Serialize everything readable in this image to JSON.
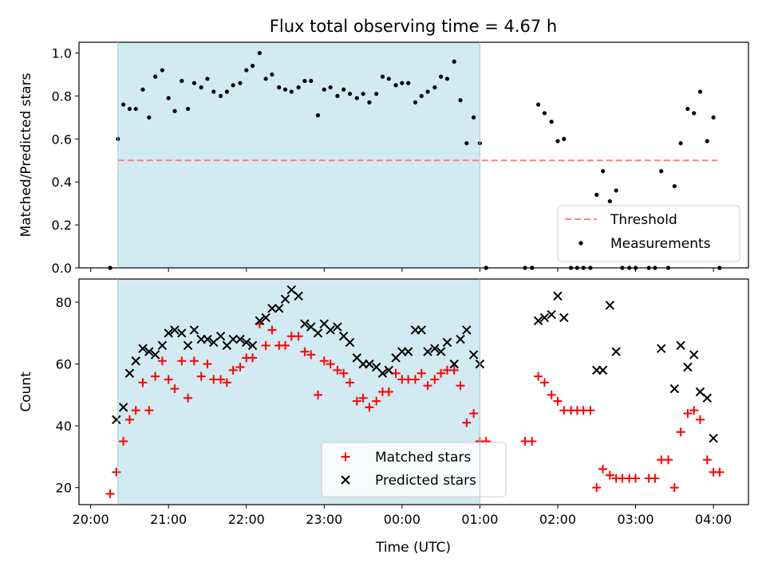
{
  "figure": {
    "title": "Flux total observing time = 4.67 h",
    "xlabel": "Time (UTC)",
    "x_tick_labels": [
      "20:00",
      "21:00",
      "22:00",
      "23:00",
      "00:00",
      "01:00",
      "02:00",
      "03:00",
      "04:00"
    ],
    "x_tick_hours": [
      0,
      1,
      2,
      3,
      4,
      5,
      6,
      7,
      8
    ],
    "x_axis_origin": "20:00",
    "xlim_hours": [
      -0.15,
      8.45
    ],
    "shaded_interval_hours": [
      0.35,
      5.0
    ],
    "shade_color": "#add8e6"
  },
  "chart_data": [
    {
      "type": "scatter",
      "ylabel": "Matched/Predicted stars",
      "ylim": [
        0,
        1.05
      ],
      "y_ticks": [
        0.0,
        0.2,
        0.4,
        0.6,
        0.8,
        1.0
      ],
      "y_tick_labels": [
        "0.0",
        "0.2",
        "0.4",
        "0.6",
        "0.8",
        "1.0"
      ],
      "legend_position": "lower-right",
      "threshold": {
        "name": "Threshold",
        "value": 0.5,
        "x_range": [
          0.35,
          8.05
        ],
        "color": "#ff7f7f",
        "style": "dashed"
      },
      "series": [
        {
          "name": "Measurements",
          "color": "#000000",
          "marker": "dot",
          "points": [
            [
              0.25,
              0.0
            ],
            [
              0.35,
              0.6
            ],
            [
              0.42,
              0.76
            ],
            [
              0.5,
              0.74
            ],
            [
              0.58,
              0.74
            ],
            [
              0.67,
              0.83
            ],
            [
              0.75,
              0.7
            ],
            [
              0.83,
              0.89
            ],
            [
              0.92,
              0.92
            ],
            [
              1.0,
              0.79
            ],
            [
              1.08,
              0.73
            ],
            [
              1.17,
              0.87
            ],
            [
              1.25,
              0.74
            ],
            [
              1.33,
              0.86
            ],
            [
              1.42,
              0.84
            ],
            [
              1.5,
              0.88
            ],
            [
              1.58,
              0.82
            ],
            [
              1.67,
              0.8
            ],
            [
              1.75,
              0.82
            ],
            [
              1.83,
              0.85
            ],
            [
              1.92,
              0.86
            ],
            [
              2.0,
              0.92
            ],
            [
              2.08,
              0.94
            ],
            [
              2.17,
              1.0
            ],
            [
              2.25,
              0.88
            ],
            [
              2.33,
              0.9
            ],
            [
              2.42,
              0.84
            ],
            [
              2.5,
              0.83
            ],
            [
              2.58,
              0.82
            ],
            [
              2.67,
              0.84
            ],
            [
              2.75,
              0.87
            ],
            [
              2.83,
              0.87
            ],
            [
              2.92,
              0.71
            ],
            [
              3.0,
              0.83
            ],
            [
              3.08,
              0.84
            ],
            [
              3.17,
              0.8
            ],
            [
              3.25,
              0.83
            ],
            [
              3.33,
              0.81
            ],
            [
              3.42,
              0.79
            ],
            [
              3.5,
              0.81
            ],
            [
              3.58,
              0.77
            ],
            [
              3.67,
              0.81
            ],
            [
              3.75,
              0.89
            ],
            [
              3.83,
              0.88
            ],
            [
              3.92,
              0.85
            ],
            [
              4.0,
              0.86
            ],
            [
              4.08,
              0.86
            ],
            [
              4.17,
              0.77
            ],
            [
              4.25,
              0.8
            ],
            [
              4.33,
              0.82
            ],
            [
              4.42,
              0.84
            ],
            [
              4.5,
              0.89
            ],
            [
              4.58,
              0.88
            ],
            [
              4.67,
              0.96
            ],
            [
              4.75,
              0.78
            ],
            [
              4.83,
              0.58
            ],
            [
              4.92,
              0.7
            ],
            [
              5.0,
              0.58
            ],
            [
              5.08,
              0.0
            ],
            [
              5.58,
              0.0
            ],
            [
              5.67,
              0.0
            ],
            [
              5.75,
              0.76
            ],
            [
              5.83,
              0.72
            ],
            [
              5.92,
              0.68
            ],
            [
              6.0,
              0.59
            ],
            [
              6.08,
              0.6
            ],
            [
              6.17,
              0.0
            ],
            [
              6.25,
              0.0
            ],
            [
              6.33,
              0.0
            ],
            [
              6.42,
              0.0
            ],
            [
              6.5,
              0.34
            ],
            [
              6.58,
              0.45
            ],
            [
              6.67,
              0.31
            ],
            [
              6.75,
              0.36
            ],
            [
              6.83,
              0.0
            ],
            [
              6.92,
              0.0
            ],
            [
              7.0,
              0.0
            ],
            [
              7.17,
              0.0
            ],
            [
              7.25,
              0.0
            ],
            [
              7.33,
              0.45
            ],
            [
              7.42,
              0.0
            ],
            [
              7.5,
              0.38
            ],
            [
              7.58,
              0.58
            ],
            [
              7.67,
              0.74
            ],
            [
              7.75,
              0.72
            ],
            [
              7.83,
              0.82
            ],
            [
              7.92,
              0.59
            ],
            [
              8.0,
              0.7
            ],
            [
              8.08,
              0.0
            ]
          ]
        }
      ]
    },
    {
      "type": "scatter",
      "ylabel": "Count",
      "ylim": [
        14.5,
        87.5
      ],
      "y_ticks": [
        20,
        40,
        60,
        80
      ],
      "y_tick_labels": [
        "20",
        "40",
        "60",
        "80"
      ],
      "legend_position": "lower-center",
      "series": [
        {
          "name": "Matched stars",
          "color": "#ff0000",
          "marker": "plus",
          "points": [
            [
              0.25,
              18
            ],
            [
              0.33,
              25
            ],
            [
              0.42,
              35
            ],
            [
              0.5,
              42
            ],
            [
              0.58,
              45
            ],
            [
              0.67,
              54
            ],
            [
              0.75,
              45
            ],
            [
              0.83,
              56
            ],
            [
              0.92,
              61
            ],
            [
              1.0,
              55
            ],
            [
              1.08,
              52
            ],
            [
              1.17,
              61
            ],
            [
              1.25,
              49
            ],
            [
              1.33,
              61
            ],
            [
              1.42,
              56
            ],
            [
              1.5,
              60
            ],
            [
              1.58,
              55
            ],
            [
              1.67,
              55
            ],
            [
              1.75,
              54
            ],
            [
              1.83,
              58
            ],
            [
              1.92,
              59
            ],
            [
              2.0,
              62
            ],
            [
              2.08,
              62
            ],
            [
              2.17,
              73
            ],
            [
              2.25,
              66
            ],
            [
              2.33,
              71
            ],
            [
              2.42,
              66
            ],
            [
              2.5,
              66
            ],
            [
              2.58,
              69
            ],
            [
              2.67,
              69
            ],
            [
              2.75,
              64
            ],
            [
              2.83,
              63
            ],
            [
              2.92,
              50
            ],
            [
              3.0,
              61
            ],
            [
              3.08,
              60
            ],
            [
              3.17,
              58
            ],
            [
              3.25,
              57
            ],
            [
              3.33,
              54
            ],
            [
              3.42,
              48
            ],
            [
              3.5,
              49
            ],
            [
              3.58,
              46
            ],
            [
              3.67,
              48
            ],
            [
              3.75,
              51
            ],
            [
              3.83,
              51
            ],
            [
              3.92,
              57
            ],
            [
              4.0,
              55
            ],
            [
              4.08,
              55
            ],
            [
              4.17,
              55
            ],
            [
              4.25,
              57
            ],
            [
              4.33,
              53
            ],
            [
              4.42,
              55
            ],
            [
              4.5,
              57
            ],
            [
              4.58,
              58
            ],
            [
              4.67,
              58
            ],
            [
              4.75,
              53
            ],
            [
              4.83,
              41
            ],
            [
              4.92,
              44
            ],
            [
              5.0,
              35
            ],
            [
              5.08,
              35
            ],
            [
              5.58,
              35
            ],
            [
              5.67,
              35
            ],
            [
              5.75,
              56
            ],
            [
              5.83,
              54
            ],
            [
              5.92,
              50
            ],
            [
              6.0,
              48
            ],
            [
              6.08,
              45
            ],
            [
              6.17,
              45
            ],
            [
              6.25,
              45
            ],
            [
              6.33,
              45
            ],
            [
              6.42,
              45
            ],
            [
              6.5,
              20
            ],
            [
              6.58,
              26
            ],
            [
              6.67,
              24
            ],
            [
              6.75,
              23
            ],
            [
              6.83,
              23
            ],
            [
              6.92,
              23
            ],
            [
              7.0,
              23
            ],
            [
              7.17,
              23
            ],
            [
              7.25,
              23
            ],
            [
              7.33,
              29
            ],
            [
              7.42,
              29
            ],
            [
              7.5,
              20
            ],
            [
              7.58,
              38
            ],
            [
              7.67,
              44
            ],
            [
              7.75,
              45
            ],
            [
              7.83,
              42
            ],
            [
              7.92,
              29
            ],
            [
              8.0,
              25
            ],
            [
              8.08,
              25
            ]
          ]
        },
        {
          "name": "Predicted stars",
          "color": "#000000",
          "marker": "x",
          "points": [
            [
              0.33,
              42
            ],
            [
              0.42,
              46
            ],
            [
              0.5,
              57
            ],
            [
              0.58,
              61
            ],
            [
              0.67,
              65
            ],
            [
              0.75,
              64
            ],
            [
              0.83,
              63
            ],
            [
              0.92,
              66
            ],
            [
              1.0,
              70
            ],
            [
              1.08,
              71
            ],
            [
              1.17,
              70
            ],
            [
              1.25,
              66
            ],
            [
              1.33,
              71
            ],
            [
              1.42,
              68
            ],
            [
              1.5,
              68
            ],
            [
              1.58,
              67
            ],
            [
              1.67,
              69
            ],
            [
              1.75,
              66
            ],
            [
              1.83,
              68
            ],
            [
              1.92,
              68
            ],
            [
              2.0,
              67
            ],
            [
              2.08,
              66
            ],
            [
              2.17,
              74
            ],
            [
              2.25,
              75
            ],
            [
              2.33,
              78
            ],
            [
              2.42,
              78
            ],
            [
              2.5,
              81
            ],
            [
              2.58,
              84
            ],
            [
              2.67,
              82
            ],
            [
              2.75,
              73
            ],
            [
              2.83,
              72
            ],
            [
              2.92,
              70
            ],
            [
              3.0,
              73
            ],
            [
              3.08,
              71
            ],
            [
              3.17,
              72
            ],
            [
              3.25,
              69
            ],
            [
              3.33,
              67
            ],
            [
              3.42,
              62
            ],
            [
              3.5,
              60
            ],
            [
              3.58,
              60
            ],
            [
              3.67,
              59
            ],
            [
              3.75,
              57
            ],
            [
              3.83,
              58
            ],
            [
              3.92,
              62
            ],
            [
              4.0,
              64
            ],
            [
              4.08,
              64
            ],
            [
              4.17,
              71
            ],
            [
              4.25,
              71
            ],
            [
              4.33,
              64
            ],
            [
              4.42,
              65
            ],
            [
              4.5,
              64
            ],
            [
              4.58,
              67
            ],
            [
              4.67,
              60
            ],
            [
              4.75,
              68
            ],
            [
              4.83,
              71
            ],
            [
              4.92,
              63
            ],
            [
              5.0,
              60
            ],
            [
              5.75,
              74
            ],
            [
              5.83,
              75
            ],
            [
              5.92,
              76
            ],
            [
              6.0,
              82
            ],
            [
              6.08,
              75
            ],
            [
              6.5,
              58
            ],
            [
              6.58,
              58
            ],
            [
              6.67,
              79
            ],
            [
              6.75,
              64
            ],
            [
              7.33,
              65
            ],
            [
              7.5,
              52
            ],
            [
              7.58,
              66
            ],
            [
              7.67,
              59
            ],
            [
              7.75,
              63
            ],
            [
              7.83,
              51
            ],
            [
              7.92,
              49
            ],
            [
              8.0,
              36
            ]
          ]
        }
      ]
    }
  ]
}
